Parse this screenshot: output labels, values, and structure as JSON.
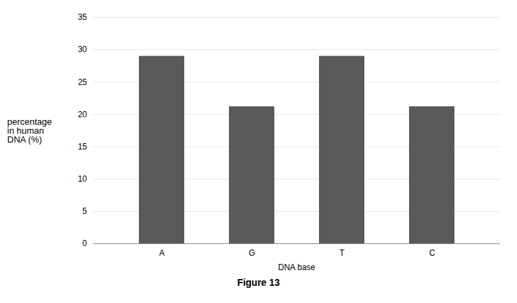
{
  "chart_data": {
    "type": "bar",
    "categories": [
      "A",
      "G",
      "T",
      "C"
    ],
    "values": [
      29.0,
      21.2,
      29.0,
      21.2
    ],
    "color": "#595959",
    "xlabel": "DNA base",
    "ylabel": "percentage\nin human\nDNA (%)",
    "caption": "Figure 13",
    "ylim": [
      0,
      35
    ],
    "yticks": [
      0,
      5,
      10,
      15,
      20,
      25,
      30,
      35
    ],
    "grid": true
  }
}
